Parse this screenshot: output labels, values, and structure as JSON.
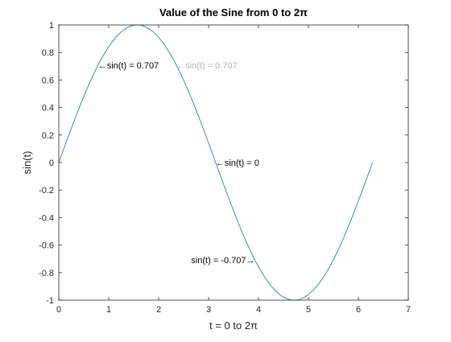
{
  "chart_data": {
    "type": "line",
    "title": "Value of the Sine from 0 to 2π",
    "xlabel": "t = 0 to 2π",
    "ylabel": "sin(t)",
    "xlim": [
      0,
      7
    ],
    "ylim": [
      -1,
      1
    ],
    "xticks": [
      0,
      1,
      2,
      3,
      4,
      5,
      6,
      7
    ],
    "yticks": [
      -1,
      -0.8,
      -0.6,
      -0.4,
      -0.2,
      0,
      0.2,
      0.4,
      0.6,
      0.8,
      1
    ],
    "xtick_labels": [
      "0",
      "1",
      "2",
      "3",
      "4",
      "5",
      "6",
      "7"
    ],
    "ytick_labels": [
      "-1",
      "-0.8",
      "-0.6",
      "-0.4",
      "-0.2",
      "0",
      "0.2",
      "0.4",
      "0.6",
      "0.8",
      "1"
    ],
    "grid": false,
    "box": true,
    "series": [
      {
        "function": "sin(t)",
        "t_start": 0,
        "t_end": 6.2832,
        "color": "#0072BD"
      }
    ],
    "annotations": [
      {
        "text": "←sin(t) = 0.707",
        "x": 0.7854,
        "y": 0.7071,
        "anchor": "left",
        "color": "#000000"
      },
      {
        "text": "←sin(t) = 0.707",
        "x": 2.3562,
        "y": 0.7071,
        "anchor": "left",
        "color": "#b3b3b3"
      },
      {
        "text": "←sin(t) = 0",
        "x": 3.1416,
        "y": 0,
        "anchor": "left",
        "color": "#000000"
      },
      {
        "text": "sin(t) = -0.707→",
        "x": 3.927,
        "y": -0.7071,
        "anchor": "right",
        "color": "#000000"
      }
    ]
  }
}
